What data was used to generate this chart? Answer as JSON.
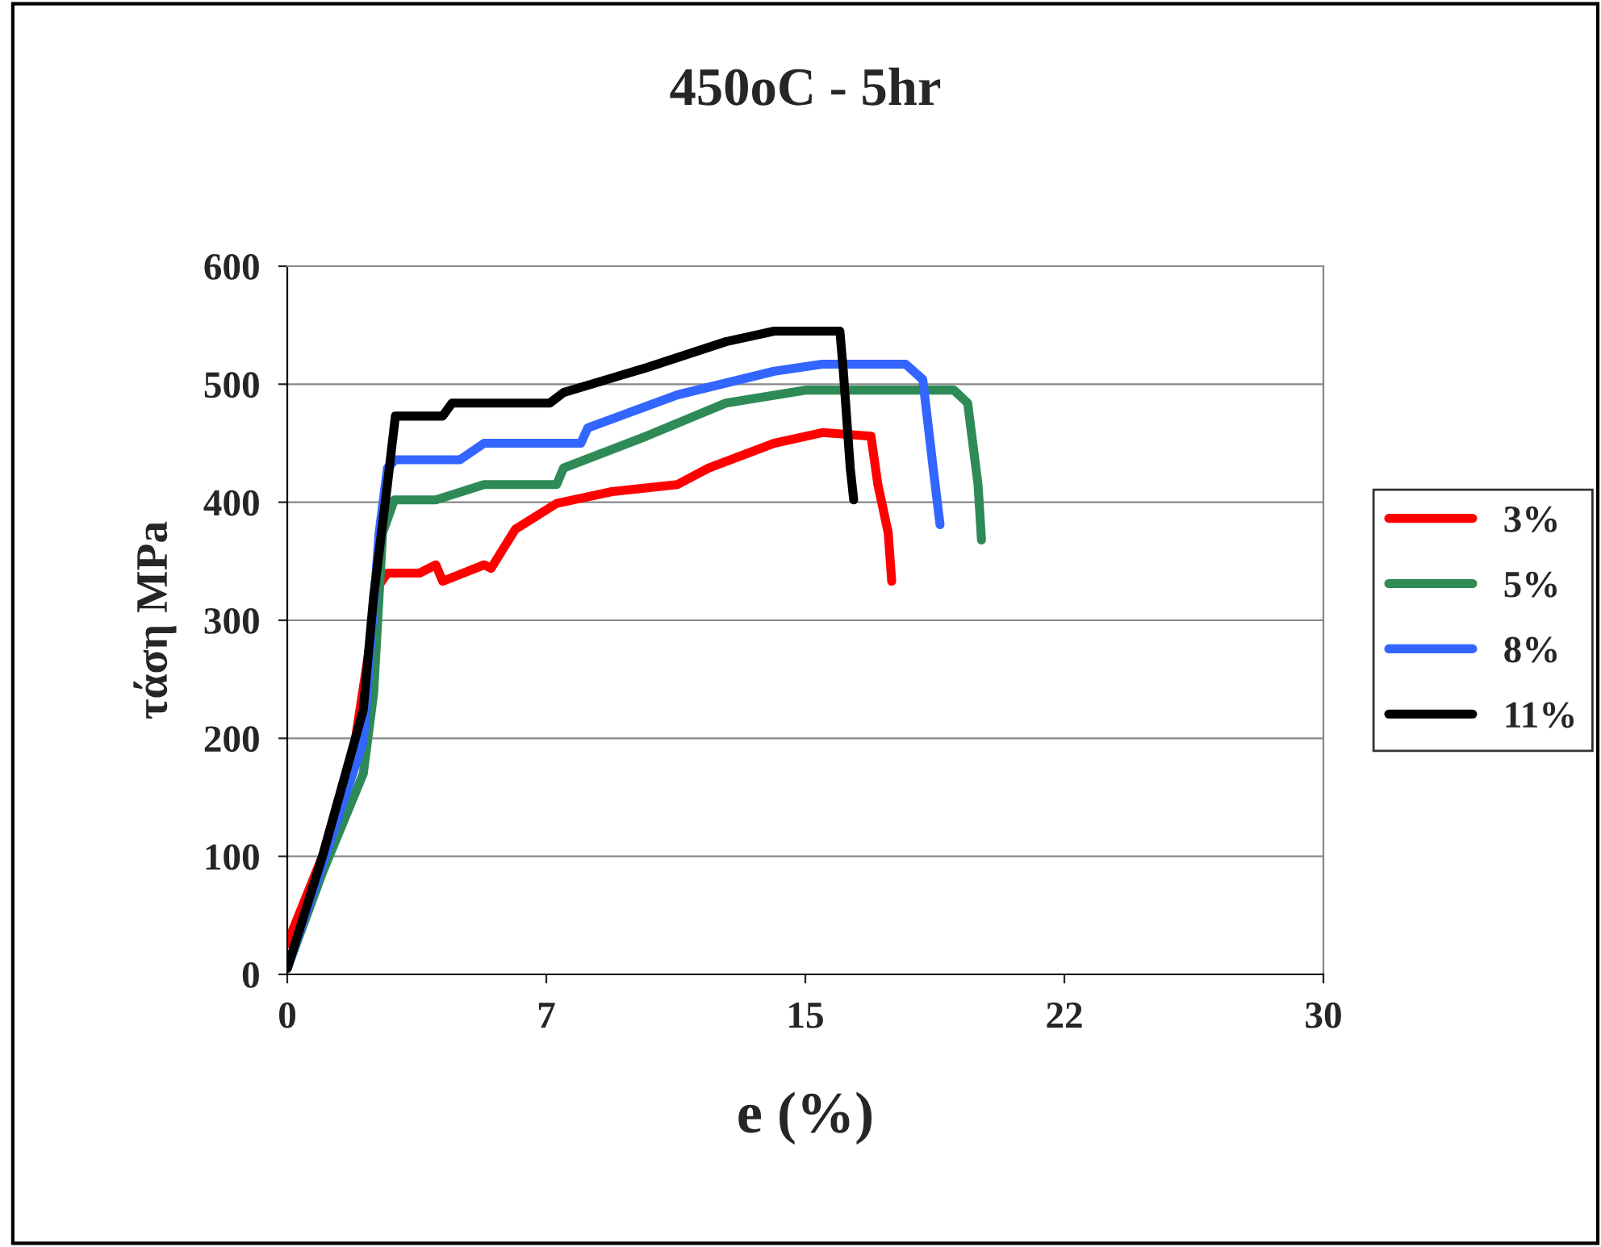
{
  "chart_data": {
    "type": "line",
    "title": "450oC - 5hr",
    "xlabel": "e (%)",
    "ylabel": "τάση MPa",
    "xlim": [
      0,
      30
    ],
    "xticks": [
      0,
      {
        "value": 7.5,
        "label": "7"
      },
      15,
      {
        "value": 22.5,
        "label": "22"
      },
      30
    ],
    "ylim": [
      0,
      600
    ],
    "yticks": [
      0,
      100,
      200,
      300,
      400,
      500,
      600
    ],
    "grid": "y",
    "legend": "right",
    "marker": "none",
    "line_style": "solid",
    "series": [
      {
        "name": "3%",
        "color": "#ff0000",
        "x": [
          0,
          1.03,
          1.96,
          2.66,
          2.9,
          3.83,
          4.3,
          4.5,
          5.7,
          5.9,
          6.6,
          7.8,
          9.4,
          11.3,
          12.2,
          14.1,
          15.5,
          16.9,
          17.1,
          17.4,
          17.5
        ],
        "values": [
          26,
          101,
          197,
          330,
          340,
          340,
          347,
          333,
          347,
          344,
          377,
          399,
          409,
          415,
          429,
          450,
          459,
          456,
          415,
          374,
          333
        ]
      },
      {
        "name": "5%",
        "color": "#2e8b57",
        "x": [
          0,
          1.03,
          2.2,
          2.5,
          2.76,
          3.1,
          4.3,
          5.7,
          7.8,
          8.0,
          10.4,
          12.7,
          15.0,
          19.3,
          19.7,
          20.0,
          20.1
        ],
        "values": [
          5,
          87,
          170,
          238,
          374,
          402,
          402,
          415,
          415,
          429,
          456,
          484,
          495,
          495,
          484,
          415,
          368
        ]
      },
      {
        "name": "8%",
        "color": "#3366ff",
        "x": [
          0,
          1.03,
          2.2,
          2.66,
          2.9,
          3.13,
          5.0,
          5.7,
          8.5,
          8.7,
          11.3,
          14.1,
          15.5,
          17.9,
          18.4,
          18.7,
          18.9
        ],
        "values": [
          5,
          94,
          197,
          374,
          429,
          436,
          436,
          450,
          450,
          463,
          491,
          511,
          517,
          517,
          504,
          429,
          381
        ]
      },
      {
        "name": "11%",
        "color": "#000000",
        "x": [
          0,
          1.03,
          2.2,
          2.5,
          2.9,
          3.13,
          4.5,
          4.77,
          7.6,
          8.0,
          10.4,
          12.7,
          14.1,
          16.0,
          16.1,
          16.3,
          16.4
        ],
        "values": [
          5,
          101,
          224,
          320,
          415,
          473,
          473,
          484,
          484,
          493,
          514,
          536,
          545,
          545,
          511,
          429,
          402
        ]
      }
    ]
  }
}
